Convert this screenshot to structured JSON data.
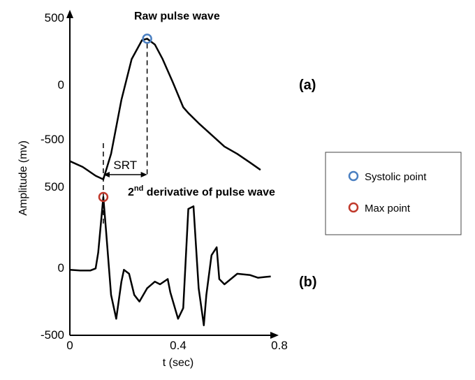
{
  "colors": {
    "systolic": "#4a7fc1",
    "max": "#c0392b",
    "line": "#000000"
  },
  "chart_data": {
    "type": "line",
    "xlabel": "t (sec)",
    "ylabel": "Amplitude (mv)",
    "xlim": [
      0,
      0.8
    ],
    "x_ticks": [
      "0",
      "0.4",
      "0.8"
    ],
    "panels": [
      {
        "id": "a",
        "label": "(a)",
        "title": "Raw pulse wave",
        "y_ticks": [
          "500",
          "0",
          "-500"
        ],
        "ylim": [
          -650,
          500
        ],
        "series": [
          {
            "x": [
              0,
              0.05,
              0.1,
              0.13,
              0.16,
              0.2,
              0.24,
              0.28,
              0.3,
              0.33,
              0.36,
              0.4,
              0.44,
              0.46,
              0.5,
              0.55,
              0.6,
              0.65,
              0.7,
              0.74
            ],
            "y": [
              -500,
              -540,
              -600,
              -625,
              -450,
              -80,
              200,
              330,
              340,
              300,
              200,
              40,
              -130,
              -170,
              -240,
              -320,
              -400,
              -450,
              -510,
              -560
            ]
          }
        ],
        "annotations": [
          {
            "type": "marker",
            "name": "Systolic point",
            "x": 0.3,
            "y": 340,
            "color": "systolic"
          },
          {
            "type": "interval",
            "text": "SRT",
            "x_start": 0.13,
            "x_end": 0.3
          }
        ]
      },
      {
        "id": "b",
        "label": "(b)",
        "title_main": "2",
        "title_sup": "nd",
        "title_rest": " derivative of pulse wave",
        "y_ticks": [
          "500",
          "0",
          "-500"
        ],
        "ylim": [
          -500,
          630
        ],
        "series": [
          {
            "x": [
              0,
              0.04,
              0.08,
              0.1,
              0.11,
              0.13,
              0.14,
              0.16,
              0.18,
              0.2,
              0.21,
              0.23,
              0.25,
              0.27,
              0.3,
              0.33,
              0.35,
              0.38,
              0.39,
              0.42,
              0.44,
              0.46,
              0.48,
              0.5,
              0.52,
              0.53,
              0.55,
              0.57,
              0.58,
              0.6,
              0.65,
              0.7,
              0.73,
              0.78
            ],
            "y": [
              -10,
              -15,
              -15,
              0,
              120,
              540,
              300,
              -200,
              -380,
              -100,
              -10,
              -40,
              -200,
              -250,
              -150,
              -100,
              -120,
              -80,
              -180,
              -380,
              -300,
              450,
              470,
              -150,
              -430,
              -200,
              100,
              160,
              -80,
              -120,
              -40,
              -50,
              -70,
              -60
            ]
          }
        ],
        "annotations": [
          {
            "type": "marker",
            "name": "Max point",
            "x": 0.13,
            "y": 540,
            "color": "max"
          }
        ]
      }
    ],
    "legend": {
      "placement": "right",
      "entries": [
        {
          "label": "Systolic point",
          "color": "systolic"
        },
        {
          "label": "Max point",
          "color": "max"
        }
      ]
    }
  }
}
